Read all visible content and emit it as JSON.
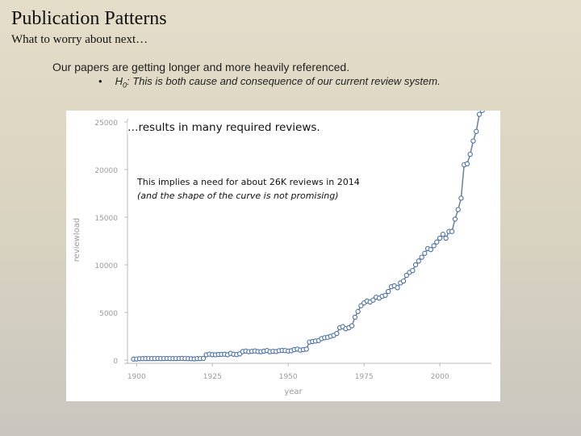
{
  "slide": {
    "title": "Publication Patterns",
    "subtitle": "What to worry about next…",
    "bullet": "Our papers are getting longer and more heavily referenced.",
    "sub_bullet_marker": "•",
    "sub_bullet_h": "H",
    "sub_bullet_sub": "0",
    "sub_bullet_text": ": This is both cause and consequence of our current review system."
  },
  "callout": {
    "heading": "…results in many required reviews.",
    "line1": "This implies a need for about 26K reviews in 2014",
    "line2": "(and the shape of the curve is not promising)"
  },
  "colors": {
    "line": "#6b7f99",
    "marker": "#4a6fa8",
    "axis": "#b8b8b8",
    "tick_text": "#9a9a9a"
  },
  "chart_data": {
    "type": "scatter",
    "title": "",
    "xlabel": "year",
    "ylabel": "reviewload",
    "xlim": [
      1897,
      2017
    ],
    "ylim": [
      0,
      25000
    ],
    "xticks": [
      1900,
      1925,
      1950,
      1975,
      2000
    ],
    "yticks": [
      0,
      5000,
      10000,
      15000,
      20000,
      25000
    ],
    "x": [
      1899,
      1900,
      1901,
      1902,
      1903,
      1904,
      1905,
      1906,
      1907,
      1908,
      1909,
      1910,
      1911,
      1912,
      1913,
      1914,
      1915,
      1916,
      1917,
      1918,
      1919,
      1920,
      1921,
      1922,
      1923,
      1924,
      1925,
      1926,
      1927,
      1928,
      1929,
      1930,
      1931,
      1932,
      1933,
      1934,
      1935,
      1936,
      1937,
      1938,
      1939,
      1940,
      1941,
      1942,
      1943,
      1944,
      1945,
      1946,
      1947,
      1948,
      1949,
      1950,
      1951,
      1952,
      1953,
      1954,
      1955,
      1956,
      1957,
      1958,
      1959,
      1960,
      1961,
      1962,
      1963,
      1964,
      1965,
      1966,
      1967,
      1968,
      1969,
      1970,
      1971,
      1972,
      1973,
      1974,
      1975,
      1976,
      1977,
      1978,
      1979,
      1980,
      1981,
      1982,
      1983,
      1984,
      1985,
      1986,
      1987,
      1988,
      1989,
      1990,
      1991,
      1992,
      1993,
      1994,
      1995,
      1996,
      1997,
      1998,
      1999,
      2000,
      2001,
      2002,
      2003,
      2004,
      2005,
      2006,
      2007,
      2008,
      2009,
      2010,
      2011,
      2012,
      2013,
      2014
    ],
    "y": [
      100,
      120,
      140,
      150,
      150,
      160,
      150,
      160,
      170,
      150,
      160,
      170,
      160,
      150,
      160,
      170,
      180,
      160,
      150,
      140,
      130,
      150,
      160,
      180,
      550,
      620,
      570,
      560,
      590,
      600,
      620,
      560,
      700,
      610,
      580,
      650,
      900,
      950,
      880,
      920,
      960,
      900,
      880,
      940,
      1000,
      880,
      920,
      900,
      980,
      1020,
      1000,
      950,
      980,
      1100,
      1150,
      1050,
      1100,
      1150,
      1900,
      1950,
      2000,
      2050,
      2250,
      2350,
      2400,
      2500,
      2600,
      2800,
      3400,
      3500,
      3300,
      3400,
      3600,
      4500,
      5100,
      5700,
      6000,
      6200,
      6100,
      6300,
      6600,
      6500,
      6700,
      6800,
      7200,
      7700,
      7800,
      7600,
      8100,
      8300,
      8900,
      9200,
      9400,
      10000,
      10400,
      10800,
      11200,
      11700,
      11600,
      12000,
      12400,
      12800,
      13200,
      12800,
      13500,
      13500,
      14800,
      15800,
      17000,
      20500,
      20600,
      21600,
      23000,
      24000,
      25800,
      26200
    ]
  }
}
